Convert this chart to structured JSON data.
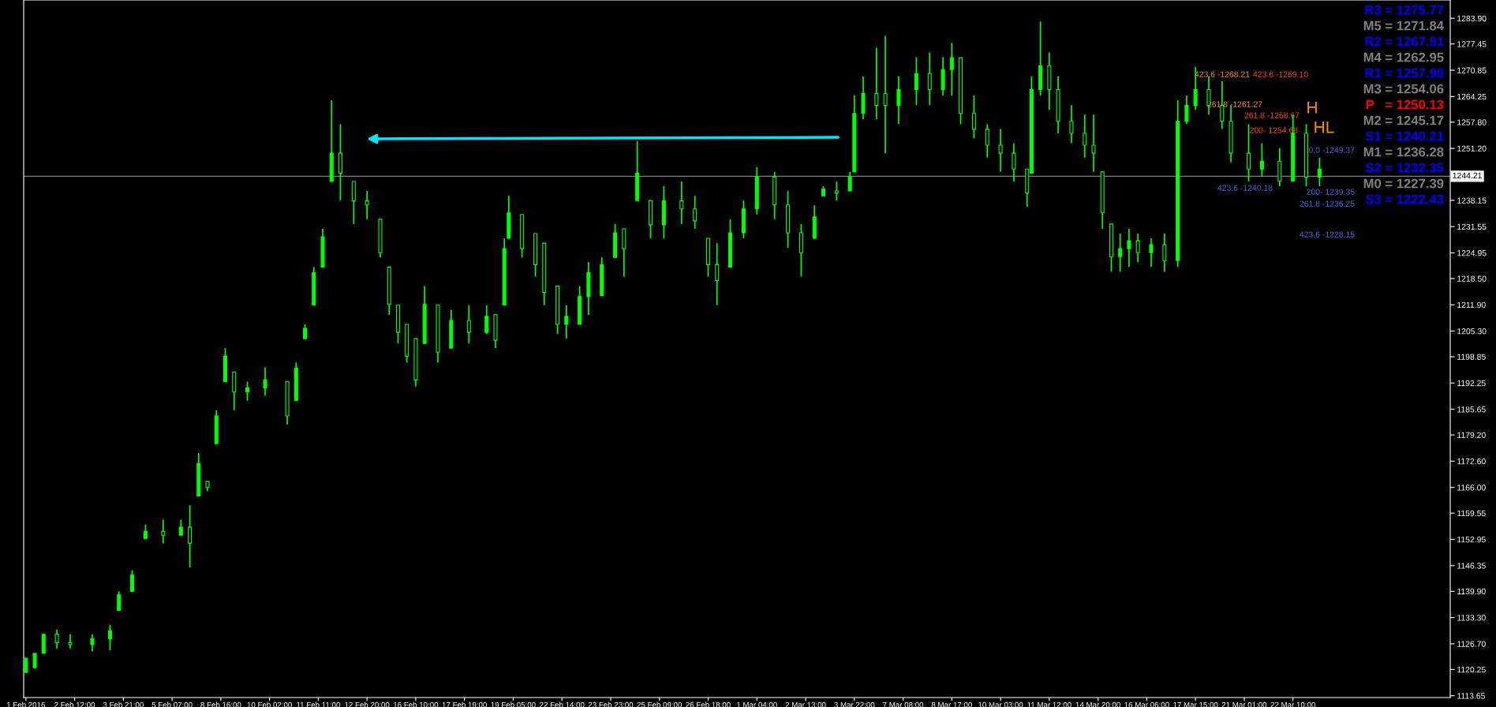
{
  "chart_data": {
    "type": "candlestick",
    "categories": [
      "1 Feb 2016",
      null,
      null,
      null,
      null,
      null,
      null,
      null,
      null,
      null,
      null,
      "2 Feb 12:00",
      null,
      null,
      null,
      null,
      null,
      null,
      null,
      null,
      null,
      null,
      "3 Feb 21:00",
      null,
      null,
      null,
      null,
      null,
      null,
      null,
      null,
      null,
      null,
      "5 Feb 07:00",
      null,
      null,
      null,
      null,
      null,
      null,
      null,
      null,
      null,
      null,
      "8 Feb 16:00",
      null,
      null,
      null,
      null,
      null,
      null,
      null,
      null,
      null,
      null,
      "10 Feb 02:00",
      null,
      null,
      null,
      null,
      null,
      null,
      null,
      null,
      null,
      null,
      "11 Feb 11:00",
      null,
      null,
      null,
      null,
      null,
      null,
      null,
      null,
      null,
      null,
      "12 Feb 20:00",
      null,
      null,
      null,
      null,
      null,
      null,
      null,
      null,
      null,
      null,
      "16 Feb 10:00",
      null,
      null,
      null,
      null,
      null,
      null,
      null,
      null,
      null,
      null,
      "17 Feb 19:00",
      null,
      null,
      null,
      null,
      null,
      null,
      null,
      null,
      null,
      null,
      "19 Feb 05:00",
      null,
      null,
      null,
      null,
      null,
      null,
      null,
      null,
      null,
      null,
      "22 Feb 14:00",
      null,
      null,
      null,
      null,
      null,
      null,
      null,
      null,
      null,
      null,
      "23 Feb 23:00",
      null,
      null,
      null,
      null,
      null,
      null,
      null,
      null,
      null,
      null,
      "25 Feb 09:00",
      null,
      null,
      null,
      null,
      null,
      null,
      null,
      null,
      null,
      null,
      "26 Feb 18:00",
      null,
      null,
      null,
      null,
      null,
      null,
      null,
      null,
      null,
      null,
      "1 Mar 04:00",
      null,
      null,
      null,
      null,
      null,
      null,
      null,
      null,
      null,
      null,
      "2 Mar 13:00",
      null,
      null,
      null,
      null,
      null,
      null,
      null,
      null,
      null,
      null,
      "3 Mar 22:00",
      null,
      null,
      null,
      null,
      null,
      null,
      null,
      null,
      null,
      null,
      "7 Mar 08:00",
      null,
      null,
      null,
      null,
      null,
      null,
      null,
      null,
      null,
      null,
      "8 Mar 17:00",
      null,
      null,
      null,
      null,
      null,
      null,
      null,
      null,
      null,
      null,
      "10 Mar 03:00",
      null,
      null,
      null,
      null,
      null,
      null,
      null,
      null,
      null,
      null,
      "11 Mar 12:00",
      null,
      null,
      null,
      null,
      null,
      null,
      null,
      null,
      null,
      null,
      "14 Mar 20:00",
      null,
      null,
      null,
      null,
      null,
      null,
      null,
      null,
      null,
      null,
      "16 Mar 06:00",
      null,
      null,
      null,
      null,
      null,
      null,
      null,
      null,
      null,
      null,
      "17 Mar 15:00",
      null,
      null,
      null,
      null,
      null,
      null,
      null,
      null,
      null,
      null,
      "21 Mar 01:00",
      null,
      null,
      null,
      null,
      null,
      null,
      null,
      null,
      null,
      null,
      "22 Mar 10:00",
      null,
      null,
      null,
      null,
      null,
      null,
      null,
      null,
      null,
      null,
      null,
      null,
      null,
      null,
      null,
      null,
      null,
      null,
      null,
      null,
      null,
      null,
      null,
      null,
      null,
      null,
      null,
      null,
      null,
      null,
      null,
      null,
      null,
      null,
      null
    ],
    "color": "#00ff00",
    "ohlc": [
      [
        1119.5,
        1123.1,
        1119.5,
        1123.1
      ],
      null,
      [
        1120.7,
        1124.3,
        1120.7,
        1124.3
      ],
      null,
      [
        1124.3,
        1129.1,
        1124.3,
        1129.1
      ],
      null,
      null,
      [
        1129.1,
        1130.3,
        1125.5,
        1127.0
      ],
      null,
      null,
      [
        1127.0,
        1129.1,
        1125.5,
        1126.5
      ],
      null,
      null,
      null,
      null,
      [
        1126.5,
        1129.1,
        1124.8,
        1128.0
      ],
      null,
      null,
      null,
      [
        1128.0,
        1131.5,
        1125.1,
        1130.0
      ],
      null,
      [
        1135.1,
        1139.9,
        1135.1,
        1139.0
      ],
      null,
      null,
      [
        1139.9,
        1145.2,
        1139.9,
        1144.0
      ],
      null,
      null,
      [
        1153.1,
        1156.7,
        1153.1,
        1155.0
      ],
      null,
      null,
      null,
      [
        1155.0,
        1157.9,
        1151.9,
        1154.0
      ],
      null,
      null,
      null,
      [
        1154.0,
        1157.9,
        1154.0,
        1156.0
      ],
      null,
      [
        1156.0,
        1161.5,
        1145.9,
        1152.0
      ],
      null,
      [
        1163.9,
        1174.7,
        1163.9,
        1172.0
      ],
      null,
      [
        1167.5,
        1167.5,
        1165.1,
        1166.0
      ],
      null,
      [
        1177.0,
        1185.4,
        1177.0,
        1184.0
      ],
      null,
      [
        1192.6,
        1201.0,
        1192.6,
        1199.0
      ],
      null,
      [
        1195.0,
        1195.0,
        1185.4,
        1190.0
      ],
      null,
      null,
      [
        1190.0,
        1192.6,
        1187.8,
        1191.0
      ],
      null,
      null,
      null,
      [
        1191.0,
        1196.2,
        1189.0,
        1193.0
      ],
      null,
      null,
      null,
      null,
      [
        1192.6,
        1192.6,
        1181.8,
        1184.0
      ],
      null,
      [
        1187.8,
        1197.4,
        1187.8,
        1196.0
      ],
      null,
      [
        1203.4,
        1207.0,
        1203.4,
        1206.0
      ],
      null,
      [
        1211.8,
        1221.4,
        1211.8,
        1220.0
      ],
      null,
      [
        1221.4,
        1231.0,
        1221.4,
        1229.0
      ],
      null,
      [
        1242.9,
        1263.3,
        1242.9,
        1250.0
      ],
      null,
      [
        1250.0,
        1257.3,
        1238.1,
        1245.0
      ],
      null,
      null,
      [
        1242.9,
        1242.9,
        1232.2,
        1238.0
      ],
      null,
      null,
      [
        1238.0,
        1240.5,
        1233.4,
        1237.0
      ],
      null,
      null,
      [
        1233.4,
        1233.4,
        1223.8,
        1225.0
      ],
      null,
      [
        1221.4,
        1221.4,
        1209.4,
        1212.0
      ],
      null,
      [
        1211.8,
        1211.8,
        1202.2,
        1205.0
      ],
      null,
      [
        1207.0,
        1207.0,
        1197.4,
        1199.0
      ],
      null,
      [
        1203.4,
        1203.4,
        1191.4,
        1193.0
      ],
      null,
      [
        1202.2,
        1216.6,
        1202.2,
        1212.0
      ],
      null,
      null,
      [
        1211.8,
        1211.8,
        1197.4,
        1200.0
      ],
      null,
      null,
      [
        1201.0,
        1210.6,
        1201.0,
        1208.0
      ],
      null,
      null,
      null,
      [
        1208.0,
        1211.8,
        1202.2,
        1205.0
      ],
      null,
      null,
      null,
      [
        1205.0,
        1211.8,
        1204.6,
        1209.0
      ],
      null,
      [
        1209.4,
        1209.4,
        1201.0,
        1203.0
      ],
      null,
      [
        1211.8,
        1228.6,
        1211.8,
        1226.0
      ],
      [
        1228.6,
        1239.3,
        1228.6,
        1235.0
      ],
      null,
      null,
      [
        1234.6,
        1234.6,
        1223.8,
        1226.0
      ],
      null,
      null,
      [
        1229.8,
        1229.8,
        1219.0,
        1222.0
      ],
      null,
      [
        1227.4,
        1227.4,
        1211.8,
        1215.0
      ],
      null,
      null,
      [
        1216.6,
        1216.6,
        1204.6,
        1207.0
      ],
      null,
      [
        1207.0,
        1211.8,
        1203.4,
        1209.0
      ],
      null,
      null,
      [
        1207.0,
        1216.6,
        1207.0,
        1214.0
      ],
      null,
      [
        1214.0,
        1222.6,
        1209.4,
        1220.0
      ],
      null,
      null,
      [
        1214.2,
        1223.8,
        1214.2,
        1222.0
      ],
      null,
      null,
      [
        1223.8,
        1232.2,
        1223.8,
        1230.0
      ],
      null,
      [
        1231.0,
        1231.0,
        1219.0,
        1226.0
      ],
      null,
      null,
      [
        1238.1,
        1253.0,
        1238.1,
        1245.0
      ],
      null,
      null,
      [
        1238.1,
        1238.1,
        1228.6,
        1232.0
      ],
      null,
      null,
      [
        1232.0,
        1241.7,
        1228.6,
        1238.0
      ],
      null,
      null,
      null,
      [
        1238.0,
        1242.9,
        1232.2,
        1236.0
      ],
      null,
      null,
      [
        1236.0,
        1239.3,
        1231.0,
        1233.0
      ],
      null,
      null,
      [
        1228.6,
        1228.6,
        1219.0,
        1222.0
      ],
      null,
      [
        1222.0,
        1227.4,
        1211.8,
        1218.0
      ],
      null,
      null,
      [
        1221.4,
        1233.4,
        1221.4,
        1230.0
      ],
      null,
      null,
      [
        1230.0,
        1238.1,
        1228.6,
        1236.0
      ],
      null,
      null,
      [
        1236.0,
        1246.5,
        1234.6,
        1244.0
      ],
      null,
      null,
      null,
      [
        1244.0,
        1245.3,
        1233.4,
        1237.0
      ],
      null,
      null,
      [
        1237.0,
        1240.5,
        1226.2,
        1230.0
      ],
      null,
      null,
      [
        1230.0,
        1232.2,
        1219.0,
        1225.0
      ],
      null,
      null,
      [
        1228.6,
        1236.9,
        1228.6,
        1234.0
      ],
      null,
      [
        1239.3,
        1241.7,
        1239.3,
        1241.0
      ],
      null,
      null,
      [
        1240.5,
        1242.9,
        1238.1,
        1240.0
      ],
      null,
      null,
      [
        1240.5,
        1245.3,
        1240.5,
        1244.0
      ],
      [
        1245.3,
        1264.5,
        1245.3,
        1260.0
      ],
      null,
      [
        1260.0,
        1269.3,
        1258.5,
        1265.0
      ],
      null,
      null,
      [
        1265.0,
        1276.5,
        1258.5,
        1262.0
      ],
      null,
      [
        1265.0,
        1279.5,
        1250.0,
        1262.0
      ],
      null,
      null,
      [
        1262.0,
        1269.3,
        1257.3,
        1266.0
      ],
      null,
      null,
      null,
      [
        1266.0,
        1274.1,
        1262.1,
        1270.0
      ],
      null,
      null,
      [
        1270.0,
        1275.3,
        1262.1,
        1266.0
      ],
      null,
      null,
      [
        1266.0,
        1274.1,
        1264.5,
        1271.0
      ],
      null,
      [
        1271.0,
        1277.7,
        1264.5,
        1274.0
      ],
      null,
      [
        1274.0,
        1274.0,
        1257.3,
        1260.0
      ],
      null,
      null,
      [
        1260.0,
        1264.5,
        1253.7,
        1256.0
      ],
      null,
      null,
      [
        1256.0,
        1257.3,
        1248.9,
        1252.0
      ],
      null,
      null,
      [
        1252.0,
        1256.1,
        1245.3,
        1250.0
      ],
      null,
      null,
      [
        1250.0,
        1252.5,
        1242.9,
        1246.0
      ],
      null,
      null,
      [
        1246.0,
        1246.0,
        1236.5,
        1240.0
      ],
      [
        1245.0,
        1269.3,
        1245.0,
        1266.0
      ],
      null,
      [
        1266.0,
        1283.1,
        1264.5,
        1272.0
      ],
      null,
      [
        1272.0,
        1275.3,
        1260.9,
        1266.0
      ],
      null,
      [
        1266.0,
        1269.3,
        1255.0,
        1258.0
      ],
      null,
      null,
      [
        1258.0,
        1262.1,
        1252.5,
        1255.0
      ],
      null,
      null,
      [
        1255.0,
        1259.7,
        1248.9,
        1252.0
      ],
      null,
      [
        1252.0,
        1259.7,
        1245.3,
        1250.0
      ],
      null,
      [
        1245.3,
        1245.3,
        1231.0,
        1235.0
      ],
      null,
      [
        1232.2,
        1232.2,
        1220.2,
        1224.0
      ],
      null,
      [
        1224.0,
        1229.8,
        1220.2,
        1226.0
      ],
      null,
      [
        1226.0,
        1231.0,
        1221.4,
        1228.0
      ],
      null,
      [
        1228.0,
        1229.8,
        1222.6,
        1225.0
      ],
      null,
      null,
      [
        1225.0,
        1228.6,
        1221.4,
        1227.0
      ],
      null,
      null,
      [
        1227.0,
        1229.8,
        1220.2,
        1223.0
      ],
      null,
      null,
      [
        1223.0,
        1263.3,
        1221.4,
        1258.0
      ],
      null,
      [
        1258.0,
        1264.5,
        1257.3,
        1262.0
      ],
      null,
      [
        1262.0,
        1271.7,
        1260.9,
        1266.0
      ],
      null,
      null,
      [
        1266.0,
        1269.3,
        1259.7,
        1262.0
      ],
      null,
      null,
      [
        1262.0,
        1268.1,
        1256.1,
        1258.0
      ],
      null,
      [
        1258.0,
        1262.1,
        1247.7,
        1250.0
      ],
      null,
      null,
      null,
      [
        1250.0,
        1257.3,
        1242.9,
        1246.0
      ],
      null,
      null,
      [
        1246.0,
        1252.5,
        1244.1,
        1248.0
      ],
      null,
      null,
      null,
      [
        1248.0,
        1251.3,
        1241.7,
        1243.0
      ],
      null,
      null,
      [
        1243.0,
        1259.7,
        1243.0,
        1255.0
      ],
      null,
      null,
      [
        1255.0,
        1257.3,
        1241.7,
        1244.0
      ],
      null,
      null,
      [
        1244.0,
        1248.9,
        1241.7,
        1246.0
      ],
      null,
      null,
      null,
      null,
      null,
      null,
      null,
      null,
      null,
      null,
      null,
      null,
      null,
      null,
      null,
      null,
      null,
      null,
      null,
      null,
      null,
      null,
      null,
      null,
      null,
      null,
      null,
      null,
      null
    ],
    "ylim": [
      1113.2,
      1288.5
    ],
    "yticks": [
      {
        "value": 1113.65,
        "label": "1113.65"
      },
      {
        "value": 1120.25,
        "label": "1120.25"
      },
      {
        "value": 1126.7,
        "label": "1126.70"
      },
      {
        "value": 1133.3,
        "label": "1133.30"
      },
      {
        "value": 1139.9,
        "label": "1139.90"
      },
      {
        "value": 1146.35,
        "label": "1146.35"
      },
      {
        "value": 1152.95,
        "label": "1152.95"
      },
      {
        "value": 1159.55,
        "label": "1159.55"
      },
      {
        "value": 1166.0,
        "label": "1166.00"
      },
      {
        "value": 1172.6,
        "label": "1172.60"
      },
      {
        "value": 1179.2,
        "label": "1179.20"
      },
      {
        "value": 1185.65,
        "label": "1185.65"
      },
      {
        "value": 1192.25,
        "label": "1192.25"
      },
      {
        "value": 1198.85,
        "label": "1198.85"
      },
      {
        "value": 1205.3,
        "label": "1205.30"
      },
      {
        "value": 1211.9,
        "label": "1211.90"
      },
      {
        "value": 1218.5,
        "label": "1218.50"
      },
      {
        "value": 1224.95,
        "label": "1224.95"
      },
      {
        "value": 1231.55,
        "label": "1231.55"
      },
      {
        "value": 1238.15,
        "label": "1238.15"
      },
      {
        "value": 1251.2,
        "label": "1251.20"
      },
      {
        "value": 1257.8,
        "label": "1257.80"
      },
      {
        "value": 1264.25,
        "label": "1264.25"
      },
      {
        "value": 1270.85,
        "label": "1270.85"
      },
      {
        "value": 1277.45,
        "label": "1277.45"
      },
      {
        "value": 1283.9,
        "label": "1283.90"
      }
    ],
    "ref_lines": [
      {
        "axis": "y",
        "value": 1244.21,
        "label": "1244.21",
        "color": "#808080"
      }
    ],
    "annotations": [
      "R3 = 1275.77",
      "M5 = 1271.84",
      "R2 = 1267.91",
      "M4 = 1262.95",
      "R1 = 1257.99",
      "M3 = 1254.06",
      "P   = 1250.13",
      "M2 = 1245.17",
      "S1 = 1240.21",
      "M1 = 1236.28",
      "S2 = 1232.35",
      "M0 = 1227.39",
      "S3 = 1222.43",
      "423.6 -1268.21",
      "423.6 -1269.10",
      "261.8 -1261.27",
      "261.8 -1258.67",
      "200- 1254.68",
      "0.0 -1249.37",
      "423.6 -1240.18",
      "200- 1239.35",
      "261.8 -1236.25",
      "423.6 -1228.15",
      "H",
      "HL"
    ]
  }
}
